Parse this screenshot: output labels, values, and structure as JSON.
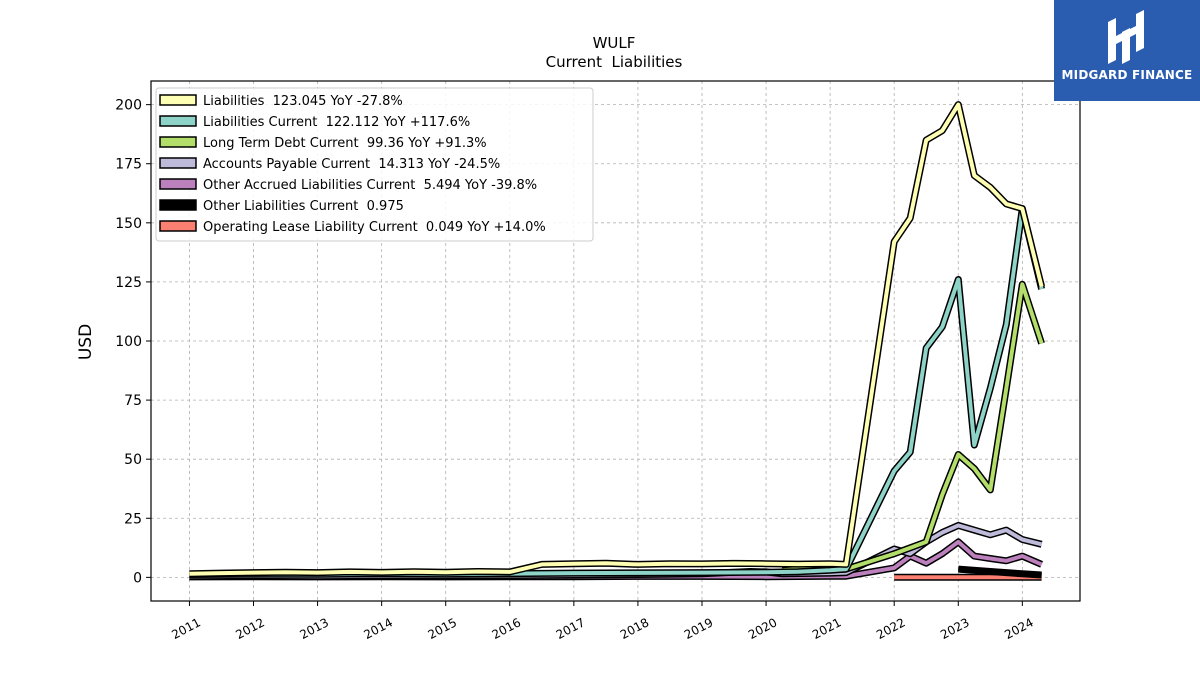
{
  "chart_data": {
    "type": "line",
    "title": "WULF",
    "subtitle": "Current  Liabilities",
    "ylabel": "USD",
    "xlabel": "",
    "xlim": [
      2010.4,
      2024.9
    ],
    "ylim": [
      -10,
      210
    ],
    "yticks": [
      0,
      25,
      50,
      75,
      100,
      125,
      150,
      175,
      200
    ],
    "xticks": [
      "2011",
      "2012",
      "2013",
      "2014",
      "2015",
      "2016",
      "2017",
      "2018",
      "2019",
      "2020",
      "2021",
      "2022",
      "2023",
      "2024"
    ],
    "grid": true,
    "legend_position": "top-left",
    "series": [
      {
        "name": "Liabilities",
        "legend": "Liabilities  123.045 YoY -27.8%",
        "color": "#ffffb3",
        "points": [
          [
            2011.0,
            1.5
          ],
          [
            2011.5,
            1.8
          ],
          [
            2012.0,
            2.0
          ],
          [
            2012.5,
            2.2
          ],
          [
            2013.0,
            2.0
          ],
          [
            2013.5,
            2.3
          ],
          [
            2014.0,
            2.1
          ],
          [
            2014.5,
            2.4
          ],
          [
            2015.0,
            2.2
          ],
          [
            2015.5,
            2.5
          ],
          [
            2016.0,
            2.3
          ],
          [
            2016.5,
            5.5
          ],
          [
            2017.0,
            5.8
          ],
          [
            2017.5,
            6.0
          ],
          [
            2018.0,
            5.5
          ],
          [
            2018.5,
            5.8
          ],
          [
            2019.0,
            5.7
          ],
          [
            2019.5,
            5.9
          ],
          [
            2020.0,
            5.8
          ],
          [
            2020.5,
            5.6
          ],
          [
            2021.0,
            5.8
          ],
          [
            2021.25,
            5.5
          ],
          [
            2022.0,
            142
          ],
          [
            2022.25,
            152
          ],
          [
            2022.5,
            185
          ],
          [
            2022.75,
            189
          ],
          [
            2023.0,
            200
          ],
          [
            2023.25,
            170
          ],
          [
            2023.5,
            165
          ],
          [
            2023.75,
            158
          ],
          [
            2024.0,
            156
          ],
          [
            2024.3,
            123
          ]
        ]
      },
      {
        "name": "Liabilities Current",
        "legend": "Liabilities Current  122.112 YoY +117.6%",
        "color": "#8dd3c7",
        "points": [
          [
            2011.0,
            1.2
          ],
          [
            2012.0,
            1.4
          ],
          [
            2013.0,
            1.3
          ],
          [
            2014.0,
            1.5
          ],
          [
            2015.0,
            1.4
          ],
          [
            2016.0,
            1.6
          ],
          [
            2017.0,
            1.8
          ],
          [
            2018.0,
            1.9
          ],
          [
            2019.0,
            2.0
          ],
          [
            2020.0,
            2.2
          ],
          [
            2020.5,
            2.4
          ],
          [
            2021.0,
            3.0
          ],
          [
            2021.25,
            3.5
          ],
          [
            2022.0,
            45
          ],
          [
            2022.25,
            53
          ],
          [
            2022.5,
            97
          ],
          [
            2022.75,
            106
          ],
          [
            2023.0,
            126
          ],
          [
            2023.25,
            56
          ],
          [
            2023.5,
            80
          ],
          [
            2023.75,
            107
          ],
          [
            2024.0,
            156
          ],
          [
            2024.3,
            122
          ]
        ]
      },
      {
        "name": "Long Term Debt Current",
        "legend": "Long Term Debt Current  99.36 YoY +91.3%",
        "color": "#b3de69",
        "points": [
          [
            2020.25,
            3.0
          ],
          [
            2020.5,
            3.5
          ],
          [
            2021.0,
            3.2
          ],
          [
            2021.25,
            3.5
          ],
          [
            2022.0,
            10
          ],
          [
            2022.5,
            15
          ],
          [
            2022.75,
            35
          ],
          [
            2023.0,
            52
          ],
          [
            2023.25,
            46
          ],
          [
            2023.5,
            37
          ],
          [
            2023.75,
            80
          ],
          [
            2024.0,
            124
          ],
          [
            2024.3,
            99
          ]
        ]
      },
      {
        "name": "Accounts Payable Current",
        "legend": "Accounts Payable Current  14.313 YoY -24.5%",
        "color": "#bebada",
        "points": [
          [
            2011.0,
            0.5
          ],
          [
            2012.0,
            0.6
          ],
          [
            2013.0,
            0.5
          ],
          [
            2014.0,
            0.7
          ],
          [
            2015.0,
            0.6
          ],
          [
            2016.0,
            0.8
          ],
          [
            2017.0,
            1.0
          ],
          [
            2018.0,
            1.2
          ],
          [
            2019.0,
            1.5
          ],
          [
            2019.75,
            2.5
          ],
          [
            2020.0,
            2.3
          ],
          [
            2020.25,
            1.5
          ],
          [
            2021.0,
            1.8
          ],
          [
            2021.25,
            2.0
          ],
          [
            2022.0,
            12
          ],
          [
            2022.25,
            10
          ],
          [
            2022.5,
            15
          ],
          [
            2022.75,
            19
          ],
          [
            2023.0,
            22
          ],
          [
            2023.25,
            20
          ],
          [
            2023.5,
            18
          ],
          [
            2023.75,
            20
          ],
          [
            2024.0,
            16
          ],
          [
            2024.3,
            14
          ]
        ]
      },
      {
        "name": "Other Accrued Liabilities Current",
        "legend": "Other Accrued Liabilities Current  5.494 YoY -39.8%",
        "color": "#bc80bd",
        "points": [
          [
            2011.0,
            0.2
          ],
          [
            2012.0,
            0.3
          ],
          [
            2013.0,
            0.2
          ],
          [
            2014.0,
            0.3
          ],
          [
            2015.0,
            0.2
          ],
          [
            2016.0,
            0.3
          ],
          [
            2017.0,
            0.3
          ],
          [
            2018.0,
            0.4
          ],
          [
            2019.0,
            0.4
          ],
          [
            2020.0,
            0.3
          ],
          [
            2021.0,
            0.5
          ],
          [
            2021.25,
            0.5
          ],
          [
            2022.0,
            4
          ],
          [
            2022.25,
            9
          ],
          [
            2022.5,
            6
          ],
          [
            2022.75,
            10
          ],
          [
            2023.0,
            15
          ],
          [
            2023.25,
            9
          ],
          [
            2023.5,
            8
          ],
          [
            2023.75,
            7
          ],
          [
            2024.0,
            9
          ],
          [
            2024.3,
            5.5
          ]
        ]
      },
      {
        "name": "Other Liabilities Current",
        "legend": "Other Liabilities Current  0.975",
        "color": "#000000",
        "points": [
          [
            2023.0,
            3.5
          ],
          [
            2023.5,
            2.5
          ],
          [
            2024.0,
            1.5
          ],
          [
            2024.3,
            1.0
          ]
        ]
      },
      {
        "name": "Operating Lease Liability Current",
        "legend": "Operating Lease Liability Current  0.049 YoY +14.0%",
        "color": "#fb8072",
        "points": [
          [
            2022.0,
            0.05
          ],
          [
            2022.5,
            0.05
          ],
          [
            2023.0,
            0.05
          ],
          [
            2023.5,
            0.05
          ],
          [
            2024.0,
            0.05
          ],
          [
            2024.3,
            0.05
          ]
        ]
      }
    ]
  },
  "logo": {
    "text": "MIDGARD FINANCE"
  }
}
